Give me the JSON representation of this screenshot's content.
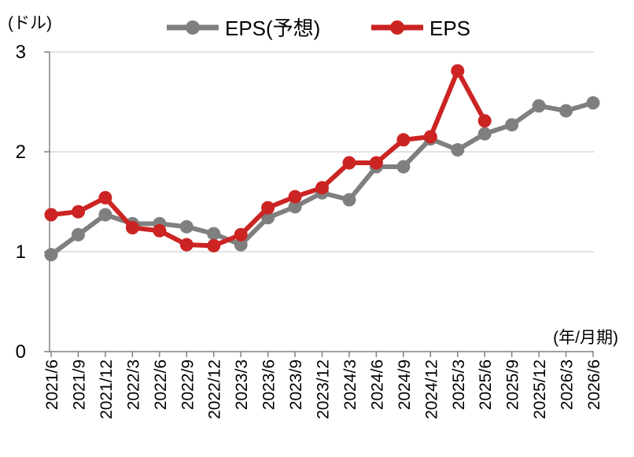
{
  "chart_data": {
    "type": "line",
    "title": "",
    "ylabel": "(ドル)",
    "xlabel": "(年/月期)",
    "ylim": [
      0,
      3
    ],
    "yticks": [
      "0",
      "1",
      "2",
      "3"
    ],
    "categories": [
      "2021/6",
      "2021/9",
      "2021/12",
      "2022/3",
      "2022/6",
      "2022/9",
      "2022/12",
      "2023/3",
      "2023/6",
      "2023/9",
      "2023/12",
      "2024/3",
      "2024/6",
      "2024/9",
      "2024/12",
      "2025/3",
      "2025/6",
      "2025/9",
      "2025/12",
      "2026/3",
      "2026/6"
    ],
    "grid": true,
    "legend_position": "top",
    "series": [
      {
        "name": "EPS(予想)",
        "color": "#7f7f7f",
        "values": [
          0.97,
          1.17,
          1.37,
          1.28,
          1.28,
          1.25,
          1.18,
          1.07,
          1.34,
          1.45,
          1.59,
          1.52,
          1.85,
          1.85,
          2.13,
          2.02,
          2.18,
          2.27,
          2.46,
          2.41,
          2.49
        ]
      },
      {
        "name": "EPS",
        "color": "#cc2323",
        "values": [
          1.37,
          1.4,
          1.54,
          1.24,
          1.21,
          1.07,
          1.06,
          1.17,
          1.44,
          1.55,
          1.64,
          1.89,
          1.89,
          2.12,
          2.15,
          2.81,
          2.31,
          null,
          null,
          null,
          null
        ]
      }
    ]
  }
}
